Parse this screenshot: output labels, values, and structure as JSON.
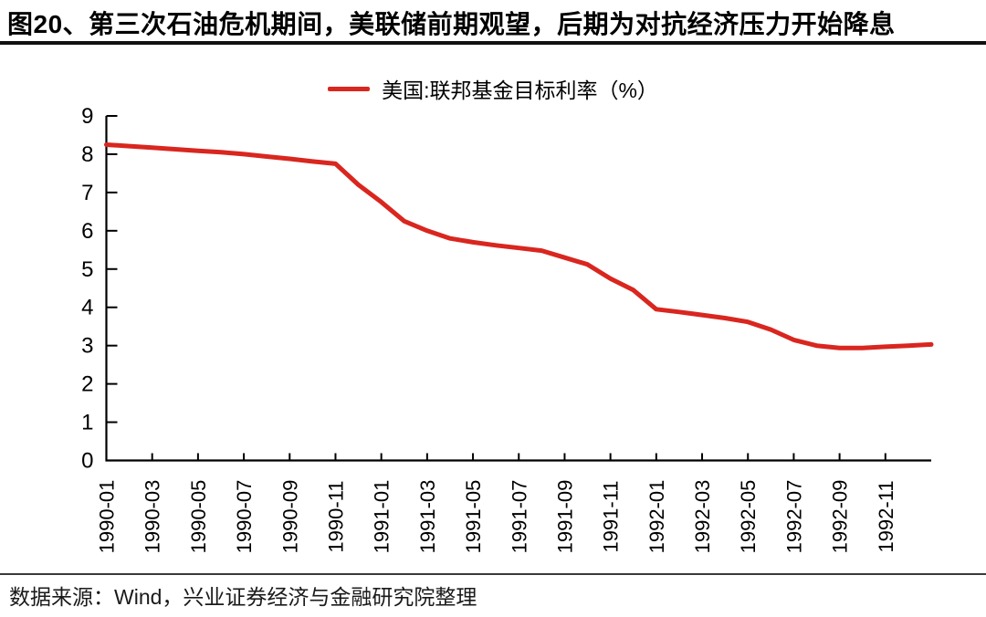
{
  "title": "图20、第三次石油危机期间，美联储前期观望，后期为对抗经济压力开始降息",
  "legend": {
    "label": "美国:联邦基金目标利率（%）"
  },
  "source": "数据来源：Wind，兴业证券经济与金融研究院整理",
  "colors": {
    "line": "#d9261f",
    "axis": "#000000",
    "title_rule": "#111111",
    "source_rule": "#3a3a3a"
  },
  "chart_data": {
    "type": "line",
    "title": "美国:联邦基金目标利率（%）",
    "x": [
      "1990-01",
      "1990-02",
      "1990-03",
      "1990-04",
      "1990-05",
      "1990-06",
      "1990-07",
      "1990-08",
      "1990-09",
      "1990-10",
      "1990-11",
      "1990-12",
      "1991-01",
      "1991-02",
      "1991-03",
      "1991-04",
      "1991-05",
      "1991-06",
      "1991-07",
      "1991-08",
      "1991-09",
      "1991-10",
      "1991-11",
      "1991-12",
      "1992-01",
      "1992-02",
      "1992-03",
      "1992-04",
      "1992-05",
      "1992-06",
      "1992-07",
      "1992-08",
      "1992-09",
      "1992-10",
      "1992-11",
      "1992-12",
      "1993-01"
    ],
    "series": [
      {
        "name": "美国:联邦基金目标利率（%）",
        "color": "#d9261f",
        "values": [
          8.25,
          8.21,
          8.17,
          8.13,
          8.09,
          8.05,
          8.0,
          7.94,
          7.88,
          7.81,
          7.75,
          7.2,
          6.75,
          6.25,
          6.0,
          5.8,
          5.7,
          5.62,
          5.55,
          5.48,
          5.3,
          5.12,
          4.75,
          4.45,
          3.95,
          3.88,
          3.8,
          3.72,
          3.62,
          3.42,
          3.15,
          3.0,
          2.94,
          2.94,
          2.97,
          3.0,
          3.03
        ]
      }
    ],
    "x_tick_labels": [
      "1990-01",
      "1990-03",
      "1990-05",
      "1990-07",
      "1990-09",
      "1990-11",
      "1991-01",
      "1991-03",
      "1991-05",
      "1991-07",
      "1991-09",
      "1991-11",
      "1992-01",
      "1992-03",
      "1992-05",
      "1992-07",
      "1992-09",
      "1992-11"
    ],
    "xlabel": "",
    "ylabel": "",
    "ylim": [
      0,
      9
    ],
    "y_tick_interval": 1,
    "grid": false,
    "legend_position": "top-center"
  }
}
